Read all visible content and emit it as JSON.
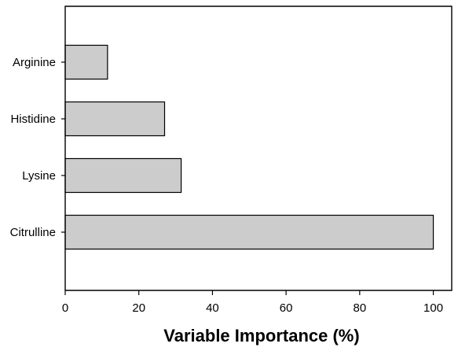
{
  "chart_data": {
    "type": "bar",
    "orientation": "horizontal",
    "categories": [
      "Arginine",
      "Histidine",
      "Lysine",
      "Citrulline"
    ],
    "values": [
      11.5,
      27,
      31.5,
      100
    ],
    "xlabel": "Variable Importance (%)",
    "ylabel": "",
    "xlim": [
      0,
      105
    ],
    "xticks": [
      0,
      20,
      40,
      60,
      80,
      100
    ],
    "grid": false,
    "colors": {
      "bar_fill": "#cccccc",
      "bar_stroke": "#000000",
      "axis": "#000000"
    }
  }
}
